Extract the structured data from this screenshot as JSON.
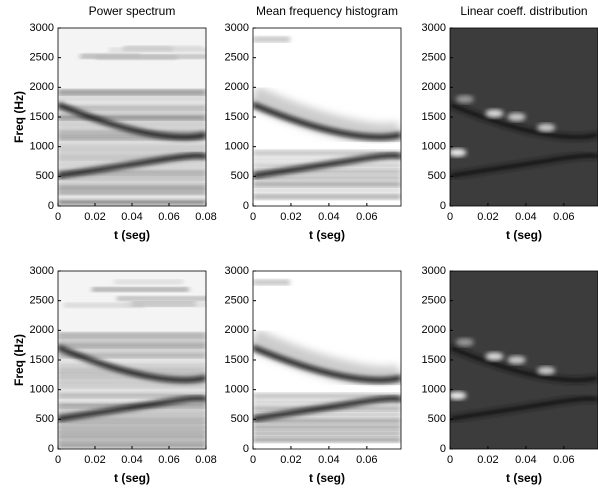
{
  "chart_data": [
    {
      "type": "heatmap",
      "title": "Power spectrum",
      "xlabel": "t (seg)",
      "ylabel": "Freq (Hz)",
      "xlim": [
        0,
        0.08
      ],
      "ylim": [
        0,
        3000
      ],
      "xticks": [
        0,
        0.02,
        0.04,
        0.06,
        0.08
      ],
      "yticks": [
        0,
        500,
        1000,
        1500,
        2000,
        2500,
        3000
      ]
    },
    {
      "type": "heatmap",
      "title": "Mean frequency histogram",
      "xlabel": "t (seg)",
      "xlim": [
        0,
        0.078
      ],
      "ylim": [
        0,
        3000
      ],
      "xticks": [
        0,
        0.02,
        0.04,
        0.06
      ],
      "yticks": [
        0,
        500,
        1000,
        1500,
        2000,
        2500,
        3000
      ]
    },
    {
      "type": "heatmap",
      "title": "Linear coeff. distribution",
      "xlabel": "t (seg)",
      "xlim": [
        0,
        0.078
      ],
      "ylim": [
        0,
        3000
      ],
      "xticks": [
        0,
        0.02,
        0.04,
        0.06
      ],
      "yticks": [
        0,
        500,
        1000,
        1500,
        2000,
        2500,
        3000
      ]
    },
    {
      "type": "heatmap",
      "xlabel": "t (seg)",
      "ylabel": "Freq (Hz)",
      "xlim": [
        0,
        0.08
      ],
      "ylim": [
        0,
        3000
      ],
      "xticks": [
        0,
        0.02,
        0.04,
        0.06,
        0.08
      ],
      "yticks": [
        0,
        500,
        1000,
        1500,
        2000,
        2500,
        3000
      ]
    },
    {
      "type": "heatmap",
      "xlabel": "t (seg)",
      "xlim": [
        0,
        0.078
      ],
      "ylim": [
        0,
        3000
      ],
      "xticks": [
        0,
        0.02,
        0.04,
        0.06
      ],
      "yticks": [
        0,
        500,
        1000,
        1500,
        2000,
        2500,
        3000
      ]
    },
    {
      "type": "heatmap",
      "xlabel": "t (seg)",
      "xlim": [
        0,
        0.078
      ],
      "ylim": [
        0,
        3000
      ],
      "xticks": [
        0,
        0.02,
        0.04,
        0.06
      ],
      "yticks": [
        0,
        500,
        1000,
        1500,
        2000,
        2500,
        3000
      ]
    }
  ]
}
